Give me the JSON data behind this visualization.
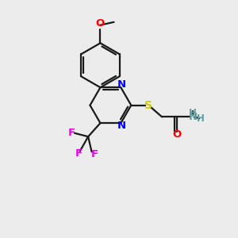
{
  "bg_color": "#ececec",
  "bond_color": "#1a1a1a",
  "N_color": "#0000ff",
  "O_color": "#ff0000",
  "S_color": "#cccc00",
  "F_color": "#ee00ee",
  "NH2_color": "#5f9ea0",
  "font_size": 9.5,
  "lw": 1.6,
  "xlim": [
    0,
    10
  ],
  "ylim": [
    0,
    10
  ]
}
